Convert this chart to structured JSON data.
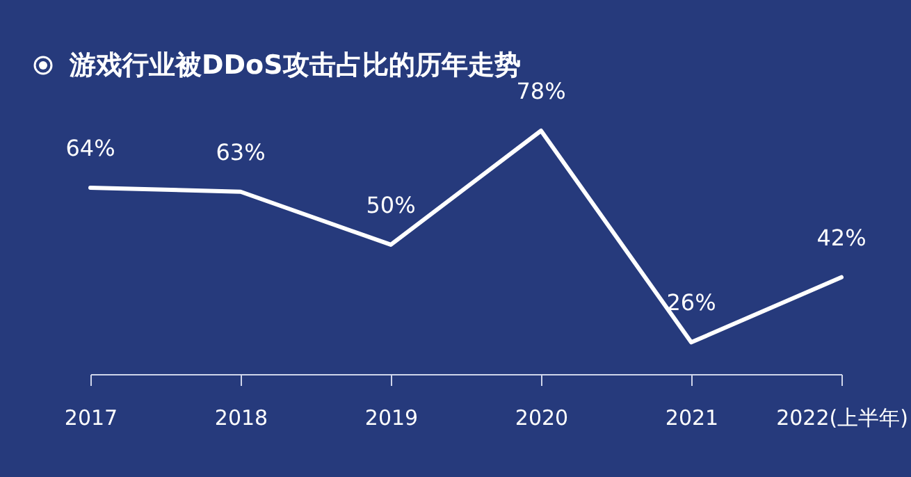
{
  "chart_data": {
    "type": "line",
    "title": "游戏行业被DDoS攻击占比的历年走势",
    "categories": [
      "2017",
      "2018",
      "2019",
      "2020",
      "2021",
      "2022(上半年)"
    ],
    "series": [
      {
        "color": "#ffffff",
        "values": [
          64,
          63,
          50,
          78,
          26,
          42
        ],
        "value_labels": [
          "64%",
          "63%",
          "50%",
          "78%",
          "26%",
          "42%"
        ]
      }
    ],
    "grid": false
  }
}
